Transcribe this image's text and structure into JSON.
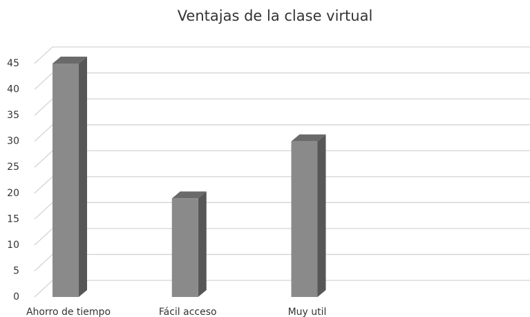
{
  "chart_data": {
    "type": "bar3d",
    "title": "Ventajas de la clase virtual",
    "categories": [
      "Ahorro de tiempo",
      "Fácil acceso",
      "Muy util",
      null
    ],
    "values": [
      45,
      19,
      30,
      null
    ],
    "color": "#8a8a8a",
    "ylim": [
      0,
      45
    ],
    "yticks": [
      0,
      5,
      10,
      15,
      20,
      25,
      30,
      35,
      40,
      45
    ],
    "grid": true
  }
}
